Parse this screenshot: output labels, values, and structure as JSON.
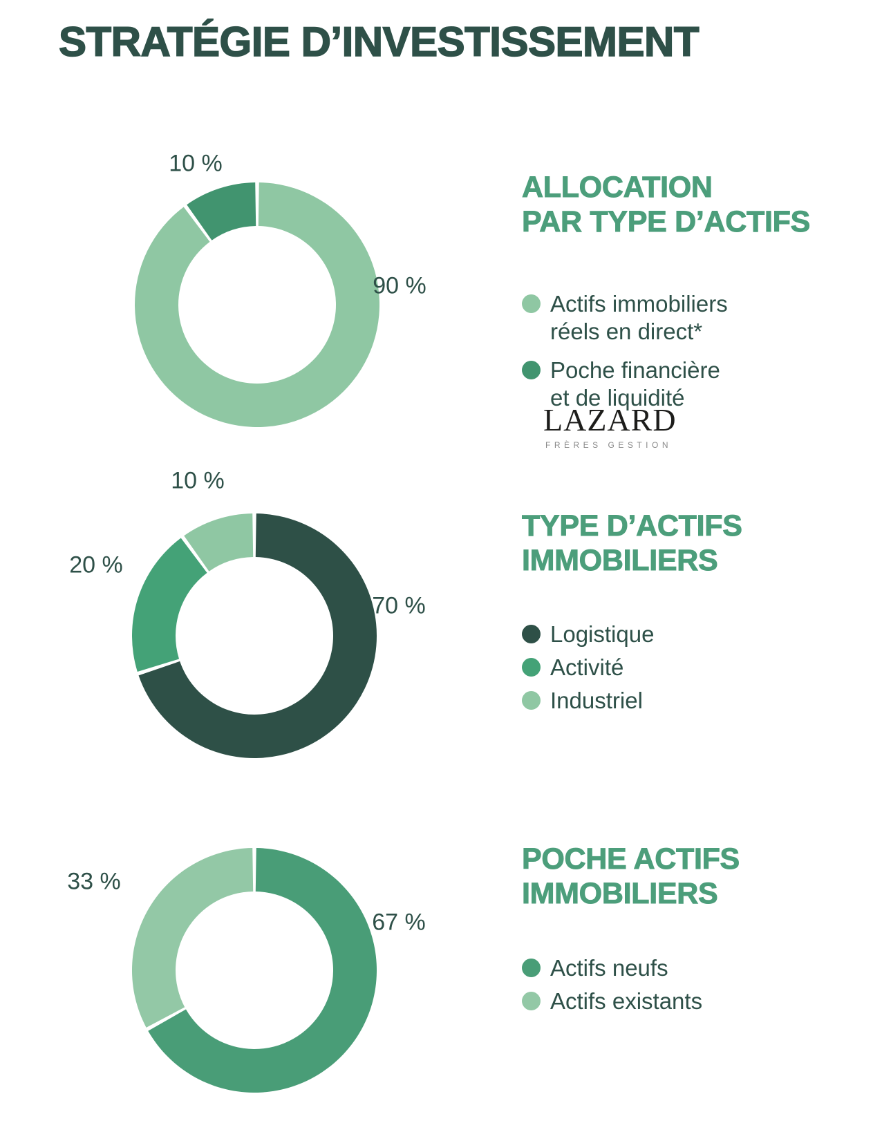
{
  "page_title": "STRATÉGIE D’INVESTISSEMENT",
  "colors": {
    "title_text": "#2E5048",
    "section_heading": "#4C9E7B",
    "body_text": "#2E5048",
    "light_green": "#8FC7A3",
    "medium_green": "#41946F",
    "bright_green": "#44A277",
    "dark_green": "#2E5048"
  },
  "logo": {
    "text": "LAZARD",
    "subtext": "FRÈRES GESTION"
  },
  "chart_data": [
    {
      "type": "donut",
      "title": "ALLOCATION PAR TYPE D’ACTIFS",
      "title_lines": [
        "ALLOCATION",
        "PAR TYPE D’ACTIFS"
      ],
      "start": "top",
      "direction": "clockwise",
      "segments": [
        {
          "label": "Actifs immobiliers réels en direct*",
          "value": 90,
          "pct_label": "90 %",
          "color": "#8FC7A3"
        },
        {
          "label": "Poche financière et de liquidité",
          "value": 10,
          "pct_label": "10 %",
          "color": "#41946F"
        }
      ],
      "legend": [
        {
          "lines": [
            "Actifs immobiliers",
            "réels en direct*"
          ],
          "color": "#8FC7A3"
        },
        {
          "lines": [
            "Poche financière",
            "et de liquidité"
          ],
          "color": "#41946F"
        }
      ]
    },
    {
      "type": "donut",
      "title": "TYPE D’ACTIFS IMMOBILIERS",
      "title_lines": [
        "TYPE D’ACTIFS",
        "IMMOBILIERS"
      ],
      "start": "top",
      "direction": "clockwise",
      "segments": [
        {
          "label": "Logistique",
          "value": 70,
          "pct_label": "70 %",
          "color": "#2E5047"
        },
        {
          "label": "Activité",
          "value": 20,
          "pct_label": "20 %",
          "color": "#44A277"
        },
        {
          "label": "Industriel",
          "value": 10,
          "pct_label": "10 %",
          "color": "#8FC7A3"
        }
      ],
      "legend": [
        {
          "lines": [
            "Logistique"
          ],
          "color": "#2E5047"
        },
        {
          "lines": [
            "Activité"
          ],
          "color": "#44A277"
        },
        {
          "lines": [
            "Industriel"
          ],
          "color": "#8FC7A3"
        }
      ]
    },
    {
      "type": "donut",
      "title": "POCHE ACTIFS IMMOBILIERS",
      "title_lines": [
        "POCHE ACTIFS",
        "IMMOBILIERS"
      ],
      "start": "top",
      "direction": "clockwise",
      "segments": [
        {
          "label": "Actifs neufs",
          "value": 67,
          "pct_label": "67 %",
          "color": "#499D77"
        },
        {
          "label": "Actifs existants",
          "value": 33,
          "pct_label": "33 %",
          "color": "#93C8A6"
        }
      ],
      "legend": [
        {
          "lines": [
            "Actifs neufs"
          ],
          "color": "#499D77"
        },
        {
          "lines": [
            "Actifs existants"
          ],
          "color": "#93C8A6"
        }
      ]
    }
  ]
}
